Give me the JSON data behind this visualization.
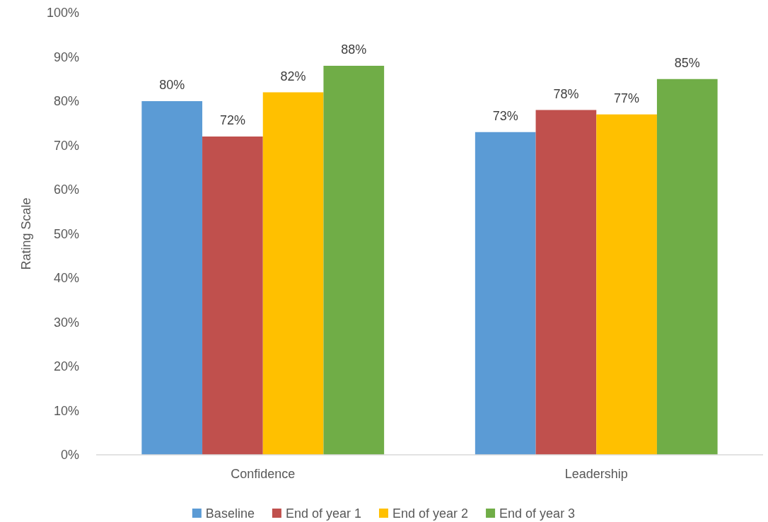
{
  "chart_data": {
    "type": "bar",
    "ylabel": "Rating Scale",
    "categories": [
      "Confidence",
      "Leadership"
    ],
    "series": [
      {
        "name": "Baseline",
        "color": "#5b9bd5",
        "values": [
          80,
          73
        ],
        "value_labels": [
          "80%",
          "73%"
        ]
      },
      {
        "name": "End of year 1",
        "color": "#c0504d",
        "values": [
          72,
          78
        ],
        "value_labels": [
          "72%",
          "78%"
        ]
      },
      {
        "name": "End of year 2",
        "color": "#ffc000",
        "values": [
          82,
          77
        ],
        "value_labels": [
          "82%",
          "77%"
        ]
      },
      {
        "name": "End of year 3",
        "color": "#70ad47",
        "values": [
          88,
          85
        ],
        "value_labels": [
          "88%",
          "85%"
        ]
      }
    ],
    "ylim": [
      0,
      100
    ],
    "yticks": [
      {
        "value": 0,
        "label": "0%"
      },
      {
        "value": 10,
        "label": "10%"
      },
      {
        "value": 20,
        "label": "20%"
      },
      {
        "value": 30,
        "label": "30%"
      },
      {
        "value": 40,
        "label": "40%"
      },
      {
        "value": 50,
        "label": "50%"
      },
      {
        "value": 60,
        "label": "60%"
      },
      {
        "value": 70,
        "label": "70%"
      },
      {
        "value": 80,
        "label": "80%"
      },
      {
        "value": 90,
        "label": "90%"
      },
      {
        "value": 100,
        "label": "100%"
      }
    ],
    "legend": "bottom"
  }
}
